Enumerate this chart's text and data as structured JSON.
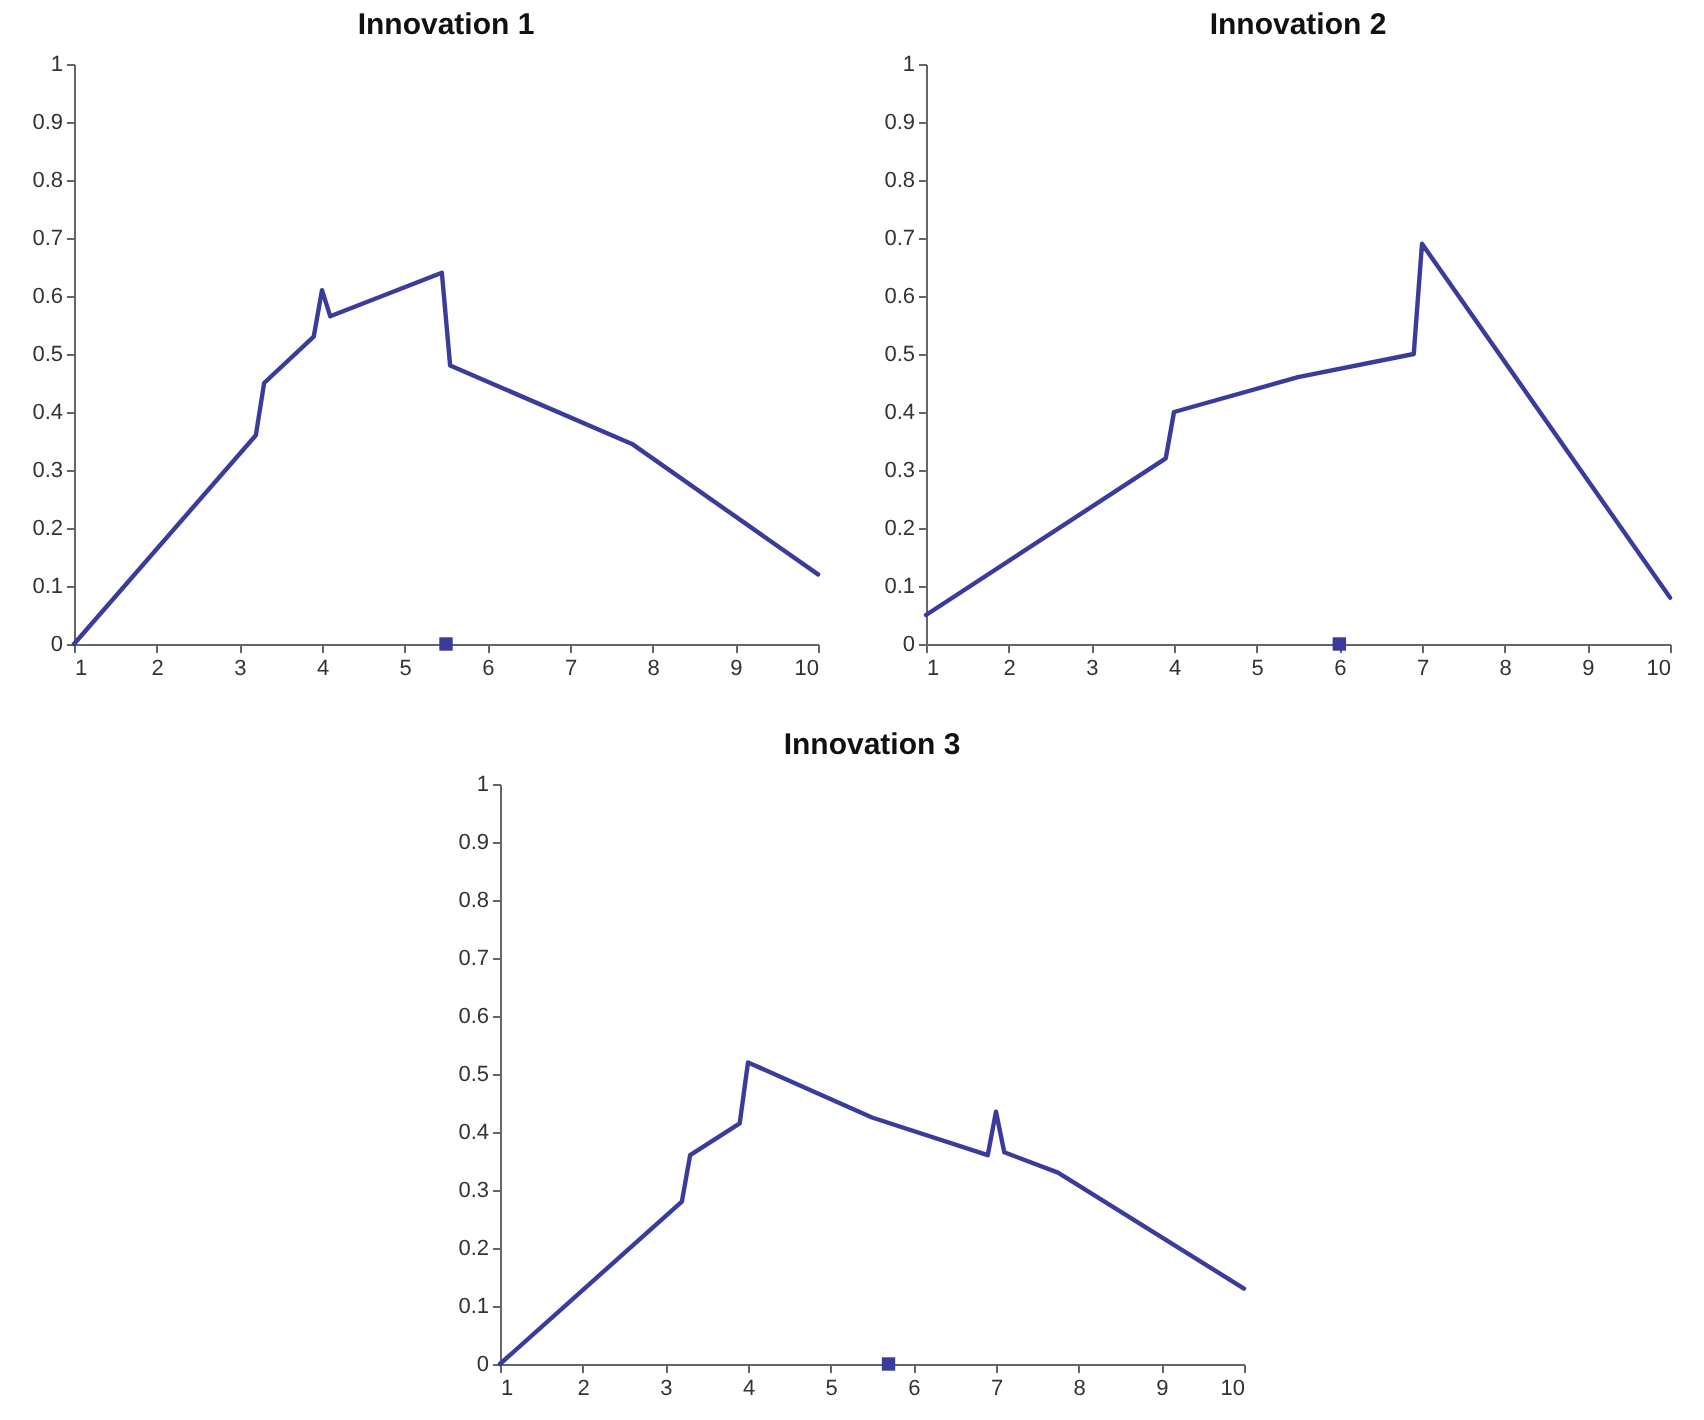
{
  "chart_data": [
    {
      "type": "line",
      "title": "Innovation 1",
      "xlim": [
        1,
        10
      ],
      "xticks": [
        1,
        2,
        3,
        4,
        5,
        6,
        7,
        8,
        9,
        10
      ],
      "ylim": [
        0,
        1
      ],
      "yticks": [
        0,
        0.1,
        0.2,
        0.3,
        0.4,
        0.5,
        0.6,
        0.7,
        0.8,
        0.9,
        1
      ],
      "series": [
        {
          "color": "#3a3c9c",
          "x": [
            1,
            3.2,
            3.3,
            3.9,
            4,
            4.1,
            5.45,
            5.55,
            7.75,
            10
          ],
          "values": [
            0,
            0.36,
            0.45,
            0.53,
            0.61,
            0.565,
            0.64,
            0.48,
            0.345,
            0.12
          ]
        },
        {
          "type": "scatter",
          "marker": "square",
          "color": "#3a3c9c",
          "x": [
            5.5
          ],
          "values": [
            0
          ]
        }
      ]
    },
    {
      "type": "line",
      "title": "Innovation 2",
      "xlim": [
        1,
        10
      ],
      "xticks": [
        1,
        2,
        3,
        4,
        5,
        6,
        7,
        8,
        9,
        10
      ],
      "ylim": [
        0,
        1
      ],
      "yticks": [
        0,
        0.1,
        0.2,
        0.3,
        0.4,
        0.5,
        0.6,
        0.7,
        0.8,
        0.9,
        1
      ],
      "series": [
        {
          "color": "#3a3c9c",
          "x": [
            1,
            3.9,
            4,
            5.5,
            6.9,
            7,
            10
          ],
          "values": [
            0.05,
            0.32,
            0.4,
            0.46,
            0.5,
            0.69,
            0.08
          ]
        },
        {
          "type": "scatter",
          "marker": "square",
          "color": "#3a3c9c",
          "x": [
            6
          ],
          "values": [
            0
          ]
        }
      ]
    },
    {
      "type": "line",
      "title": "Innovation 3",
      "xlim": [
        1,
        10
      ],
      "xticks": [
        1,
        2,
        3,
        4,
        5,
        6,
        7,
        8,
        9,
        10
      ],
      "ylim": [
        0,
        1
      ],
      "yticks": [
        0,
        0.1,
        0.2,
        0.3,
        0.4,
        0.5,
        0.6,
        0.7,
        0.8,
        0.9,
        1
      ],
      "series": [
        {
          "color": "#3a3c9c",
          "x": [
            1,
            3.2,
            3.3,
            3.9,
            4,
            5.5,
            6.9,
            7,
            7.1,
            7.75,
            10
          ],
          "values": [
            0,
            0.28,
            0.36,
            0.415,
            0.52,
            0.425,
            0.36,
            0.435,
            0.365,
            0.33,
            0.13
          ]
        },
        {
          "type": "scatter",
          "marker": "square",
          "color": "#3a3c9c",
          "x": [
            5.7
          ],
          "values": [
            0
          ]
        }
      ]
    }
  ]
}
